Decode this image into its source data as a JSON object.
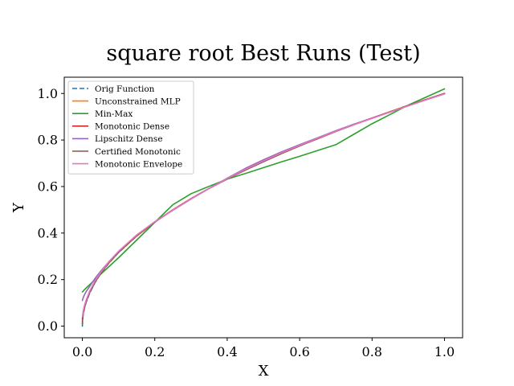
{
  "chart_data": {
    "type": "line",
    "title": "square root Best Runs (Test)",
    "xlabel": "X",
    "ylabel": "Y",
    "xlim": [
      -0.05,
      1.05
    ],
    "ylim": [
      -0.05,
      1.07
    ],
    "xticks": [
      0.0,
      0.2,
      0.4,
      0.6,
      0.8,
      1.0
    ],
    "xtick_labels": [
      "0.0",
      "0.2",
      "0.4",
      "0.6",
      "0.8",
      "1.0"
    ],
    "yticks": [
      0.0,
      0.2,
      0.4,
      0.6,
      0.8,
      1.0
    ],
    "ytick_labels": [
      "0.0",
      "0.2",
      "0.4",
      "0.6",
      "0.8",
      "1.0"
    ],
    "grid": false,
    "legend_position": "upper-left",
    "x": [
      0.0,
      0.001,
      0.003,
      0.006,
      0.01,
      0.02,
      0.035,
      0.05,
      0.075,
      0.1,
      0.15,
      0.2,
      0.25,
      0.3,
      0.35,
      0.4,
      0.45,
      0.5,
      0.55,
      0.6,
      0.65,
      0.7,
      0.75,
      0.8,
      0.85,
      0.9,
      0.95,
      1.0
    ],
    "series": [
      {
        "name": "Orig Function",
        "color": "#1f77b4",
        "dashed": true,
        "values": [
          0.0,
          0.032,
          0.055,
          0.077,
          0.1,
          0.141,
          0.187,
          0.224,
          0.274,
          0.316,
          0.387,
          0.447,
          0.5,
          0.548,
          0.592,
          0.632,
          0.671,
          0.707,
          0.742,
          0.775,
          0.806,
          0.837,
          0.866,
          0.894,
          0.922,
          0.949,
          0.975,
          1.0
        ]
      },
      {
        "name": "Unconstrained MLP",
        "color": "#ff7f0e",
        "dashed": false,
        "values": [
          0.02,
          0.04,
          0.062,
          0.082,
          0.104,
          0.145,
          0.19,
          0.226,
          0.275,
          0.317,
          0.387,
          0.447,
          0.5,
          0.548,
          0.592,
          0.632,
          0.671,
          0.707,
          0.742,
          0.775,
          0.806,
          0.837,
          0.866,
          0.894,
          0.922,
          0.949,
          0.975,
          1.0
        ]
      },
      {
        "name": "Min-Max",
        "color": "#2ca02c",
        "dashed": false,
        "values": [
          0.147,
          0.148,
          0.152,
          0.157,
          0.163,
          0.178,
          0.2,
          0.222,
          0.258,
          0.294,
          0.37,
          0.446,
          0.522,
          0.569,
          0.601,
          0.632,
          0.656,
          0.681,
          0.706,
          0.73,
          0.755,
          0.78,
          0.825,
          0.87,
          0.91,
          0.95,
          0.985,
          1.02
        ]
      },
      {
        "name": "Monotonic Dense",
        "color": "#d62728",
        "dashed": false,
        "values": [
          0.03,
          0.045,
          0.065,
          0.085,
          0.107,
          0.148,
          0.192,
          0.228,
          0.277,
          0.318,
          0.389,
          0.448,
          0.5,
          0.548,
          0.592,
          0.633,
          0.671,
          0.707,
          0.742,
          0.775,
          0.806,
          0.837,
          0.866,
          0.894,
          0.921,
          0.948,
          0.974,
          1.0
        ]
      },
      {
        "name": "Lipschitz Dense",
        "color": "#9467bd",
        "dashed": false,
        "values": [
          0.11,
          0.115,
          0.125,
          0.135,
          0.147,
          0.17,
          0.205,
          0.235,
          0.28,
          0.318,
          0.39,
          0.448,
          0.498,
          0.546,
          0.592,
          0.636,
          0.678,
          0.715,
          0.749,
          0.78,
          0.81,
          0.84,
          0.868,
          0.894,
          0.92,
          0.947,
          0.974,
          1.0
        ]
      },
      {
        "name": "Certified Monotonic",
        "color": "#8c564b",
        "dashed": false,
        "values": [
          0.01,
          0.038,
          0.06,
          0.08,
          0.103,
          0.144,
          0.189,
          0.226,
          0.276,
          0.318,
          0.389,
          0.448,
          0.5,
          0.548,
          0.592,
          0.633,
          0.671,
          0.707,
          0.742,
          0.775,
          0.806,
          0.837,
          0.866,
          0.894,
          0.921,
          0.948,
          0.974,
          1.0
        ]
      },
      {
        "name": "Monotonic Envelope",
        "color": "#e377c2",
        "dashed": false,
        "values": [
          0.04,
          0.05,
          0.07,
          0.09,
          0.11,
          0.15,
          0.195,
          0.23,
          0.28,
          0.322,
          0.392,
          0.449,
          0.499,
          0.547,
          0.592,
          0.634,
          0.674,
          0.71,
          0.745,
          0.777,
          0.808,
          0.838,
          0.866,
          0.893,
          0.92,
          0.947,
          0.973,
          0.998
        ]
      }
    ]
  }
}
